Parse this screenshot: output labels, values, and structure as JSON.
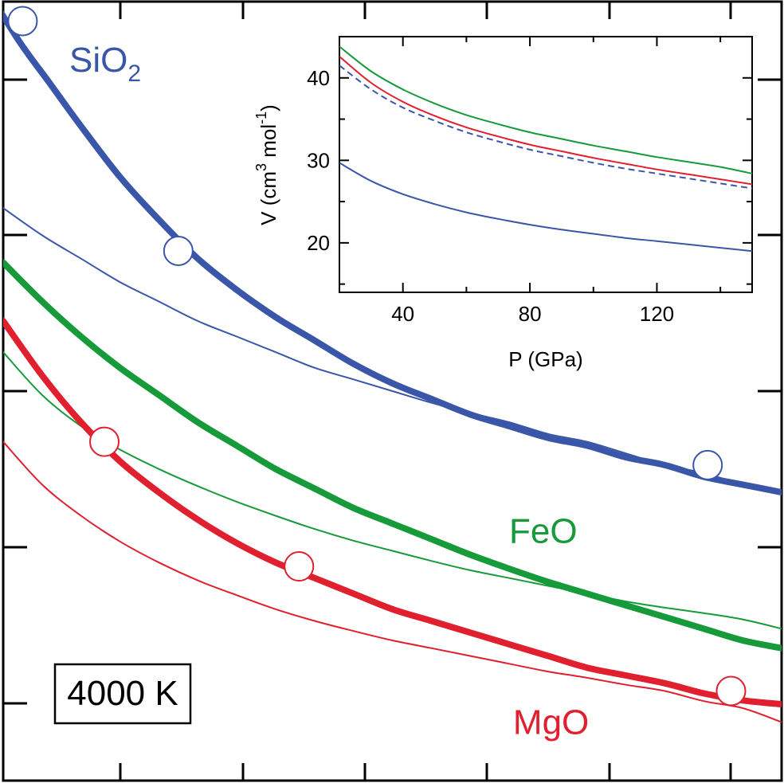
{
  "chart_data": [
    {
      "type": "line",
      "title": "",
      "xlabel": "",
      "ylabel": "",
      "xlim": [
        0,
        10
      ],
      "ylim": [
        0,
        10
      ],
      "box_label": "4000 K",
      "colors": {
        "SiO2": "#3a56a8",
        "FeO": "#169a3a",
        "MgO": "#e0202e"
      },
      "series": [
        {
          "name": "SiO₂",
          "key": "SiO2",
          "role": "thick",
          "x": [
            -0.3,
            0.2,
            0.6,
            1.0,
            1.5,
            2.0,
            2.5,
            3.0,
            3.5,
            4.0,
            4.5,
            5.0,
            5.5,
            6.0,
            6.5,
            7.0,
            7.5,
            8.0,
            8.5,
            9.0,
            9.5,
            10.0
          ],
          "y": [
            10.3,
            9.5,
            8.95,
            8.4,
            7.75,
            7.2,
            6.7,
            6.3,
            5.95,
            5.65,
            5.35,
            5.1,
            4.9,
            4.7,
            4.55,
            4.4,
            4.3,
            4.15,
            4.05,
            3.9,
            3.8,
            3.7
          ]
        },
        {
          "name": "",
          "key": "SiO2",
          "role": "thin",
          "x": [
            0.0,
            0.5,
            1.0,
            1.5,
            2.0,
            2.5,
            3.0,
            3.5,
            4.0,
            4.5,
            5.0,
            5.5,
            6.0,
            6.5,
            7.0,
            7.5,
            8.0,
            8.5,
            9.0,
            9.5,
            10.0
          ],
          "y": [
            7.35,
            7.0,
            6.7,
            6.4,
            6.15,
            5.9,
            5.7,
            5.5,
            5.3,
            5.15,
            5.0,
            4.85,
            4.72,
            4.6,
            4.45,
            4.35,
            4.2,
            4.05,
            3.95,
            3.8,
            3.7
          ]
        },
        {
          "name": "FeO",
          "key": "FeO",
          "role": "thick",
          "x": [
            0.0,
            0.5,
            1.0,
            1.5,
            2.0,
            2.5,
            3.0,
            3.5,
            4.0,
            4.5,
            5.0,
            5.5,
            6.0,
            6.5,
            7.0,
            7.5,
            8.0,
            8.5,
            9.0,
            9.5,
            10.0
          ],
          "y": [
            6.65,
            6.15,
            5.7,
            5.3,
            4.95,
            4.6,
            4.3,
            4.0,
            3.75,
            3.5,
            3.3,
            3.1,
            2.9,
            2.72,
            2.55,
            2.4,
            2.25,
            2.1,
            1.95,
            1.8,
            1.7
          ]
        },
        {
          "name": "",
          "key": "FeO",
          "role": "thin",
          "x": [
            0.0,
            0.5,
            1.0,
            1.5,
            2.0,
            2.5,
            3.0,
            3.5,
            4.0,
            4.5,
            5.0,
            5.5,
            6.0,
            6.5,
            7.0,
            7.5,
            8.0,
            8.5,
            9.0,
            9.5,
            10.0
          ],
          "y": [
            5.5,
            4.95,
            4.55,
            4.25,
            4.0,
            3.78,
            3.58,
            3.4,
            3.23,
            3.08,
            2.95,
            2.82,
            2.7,
            2.6,
            2.5,
            2.4,
            2.3,
            2.22,
            2.15,
            2.07,
            1.95
          ]
        },
        {
          "name": "MgO",
          "key": "MgO",
          "role": "thick",
          "x": [
            0.0,
            0.5,
            1.0,
            1.5,
            2.0,
            2.5,
            3.0,
            3.5,
            4.0,
            4.5,
            5.0,
            5.5,
            6.0,
            6.5,
            7.0,
            7.5,
            8.0,
            8.5,
            9.0,
            9.5,
            10.0
          ],
          "y": [
            5.9,
            5.2,
            4.6,
            4.1,
            3.7,
            3.35,
            3.05,
            2.8,
            2.6,
            2.4,
            2.2,
            2.05,
            1.9,
            1.75,
            1.6,
            1.45,
            1.35,
            1.25,
            1.12,
            1.03,
            0.98
          ]
        },
        {
          "name": "",
          "key": "MgO",
          "role": "thin",
          "x": [
            0.0,
            0.5,
            1.0,
            1.5,
            2.0,
            2.5,
            3.0,
            3.5,
            4.0,
            4.5,
            5.0,
            5.5,
            6.0,
            6.5,
            7.0,
            7.5,
            8.0,
            8.5,
            9.0,
            9.5,
            10.0
          ],
          "y": [
            4.35,
            3.8,
            3.4,
            3.07,
            2.8,
            2.57,
            2.38,
            2.2,
            2.05,
            1.92,
            1.8,
            1.7,
            1.6,
            1.5,
            1.4,
            1.32,
            1.23,
            1.15,
            1.02,
            0.93,
            0.75
          ]
        }
      ],
      "points": [
        {
          "key": "SiO2",
          "x": 0.25,
          "y": 9.75
        },
        {
          "key": "SiO2",
          "x": 2.25,
          "y": 6.8
        },
        {
          "key": "SiO2",
          "x": 9.05,
          "y": 4.05
        },
        {
          "key": "MgO",
          "x": 1.3,
          "y": 4.35
        },
        {
          "key": "MgO",
          "x": 3.8,
          "y": 2.75
        },
        {
          "key": "MgO",
          "x": 9.35,
          "y": 1.15
        }
      ],
      "labels": [
        {
          "text": "SiO",
          "sub": "2",
          "key": "SiO2",
          "x": 0.85,
          "y": 9.1
        },
        {
          "text": "FeO",
          "sub": "",
          "key": "FeO",
          "x": 6.5,
          "y": 3.05
        },
        {
          "text": "MgO",
          "sub": "",
          "key": "MgO",
          "x": 6.55,
          "y": 0.6
        }
      ]
    },
    {
      "type": "line",
      "title": "",
      "xlabel": "P (GPa)",
      "ylabel": "V (cm3 mol-1)",
      "ylabel_parts": {
        "v": "V (cm",
        "exp1": "3",
        "mid": " mol",
        "exp2": "-1",
        "end": ")"
      },
      "xlim": [
        20,
        150
      ],
      "ylim": [
        14,
        45
      ],
      "xticks": [
        40,
        80,
        120
      ],
      "yticks": [
        20,
        30,
        40
      ],
      "series": [
        {
          "name": "",
          "key": "FeO",
          "style": "solid",
          "x": [
            20,
            30,
            40,
            50,
            60,
            70,
            80,
            90,
            100,
            110,
            120,
            130,
            140,
            150
          ],
          "y": [
            43.8,
            40.8,
            38.6,
            36.9,
            35.5,
            34.4,
            33.4,
            32.6,
            31.8,
            31.1,
            30.4,
            29.8,
            29.2,
            28.4
          ]
        },
        {
          "name": "",
          "key": "MgO",
          "style": "solid",
          "x": [
            20,
            30,
            40,
            50,
            60,
            70,
            80,
            90,
            100,
            110,
            120,
            130,
            140,
            150
          ],
          "y": [
            42.6,
            39.4,
            37.1,
            35.4,
            34.0,
            32.9,
            31.9,
            31.1,
            30.3,
            29.6,
            28.9,
            28.3,
            27.7,
            27.1
          ]
        },
        {
          "name": "",
          "key": "SiO2",
          "style": "dashed",
          "x": [
            20,
            30,
            40,
            50,
            60,
            70,
            80,
            90,
            100,
            110,
            120,
            130,
            140,
            150
          ],
          "y": [
            41.5,
            38.6,
            36.4,
            34.8,
            33.4,
            32.3,
            31.3,
            30.5,
            29.7,
            29.0,
            28.4,
            27.8,
            27.2,
            26.6
          ]
        },
        {
          "name": "",
          "key": "SiO2",
          "style": "solid",
          "x": [
            20,
            30,
            40,
            50,
            60,
            70,
            80,
            90,
            100,
            110,
            120,
            130,
            140,
            150
          ],
          "y": [
            29.7,
            27.5,
            25.9,
            24.7,
            23.7,
            22.9,
            22.2,
            21.6,
            21.1,
            20.6,
            20.2,
            19.8,
            19.4,
            19.0
          ]
        }
      ]
    }
  ]
}
